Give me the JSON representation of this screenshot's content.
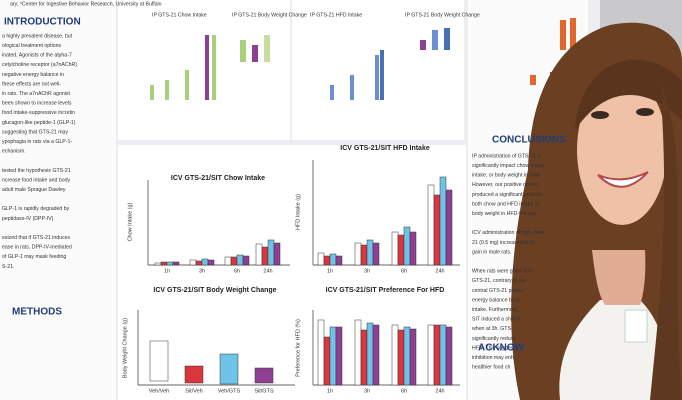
{
  "poster": {
    "header": "ary; ¹Center for Ingestive Behavior Research, University at Buffalo",
    "intro": {
      "title": "INTRODUCTION",
      "lines": [
        "a highly prevalent disease, but",
        "ological treatment options",
        "inated. Agonists of the alpha-7",
        "cetylcholine receptor (a7nAChR)",
        "negative energy balance in",
        "these effects are not well-",
        "in rats. The a7nAChR agonist",
        "been shown to increase levels",
        "food intake-suppressive incretin",
        "glucagon-like peptide-1 (GLP-1)",
        "suggesting that GTS-21 may",
        "ypophagia in rats via a GLP-1-",
        "echanism.",
        "",
        "tested the hypothesis GTS-21",
        "ncrease food intake and body",
        "adult male Sprague Dawley",
        "",
        "GLP-1 is rapidly degraded by",
        "peptidase-IV (DPP-IV).",
        "",
        "esized that if GTS-21 induces",
        "ease in rats, DPP-IV-mediated",
        "of GLP-1 may mask feeding",
        "S-21."
      ]
    },
    "methods_title": "METHODS",
    "top_charts": [
      "IP GTS-21 Chow Intake",
      "IP GTS-21 Body Weight Change",
      "IP GTS-21 HFD Intake",
      "IP GTS-21 Body Weight Change"
    ],
    "charts": [
      {
        "title": "ICV GTS-21/SIT Chow Intake",
        "ylabel": "Chow Intake (g)",
        "xlabels": [
          "1h",
          "3h",
          "6h",
          "24h"
        ]
      },
      {
        "title": "ICV GTS-21/SIT HFD Intake",
        "ylabel": "HFD Intake (g)",
        "xlabels": [
          "1h",
          "3h",
          "6h",
          "24h"
        ]
      },
      {
        "title": "ICV GTS-21/SIT Body Weight Change",
        "ylabel": "Body Weight Change (g)",
        "xlabels": [
          "Veh/Veh",
          "Sit/Veh",
          "Veh/GTS",
          "Sit/GTS"
        ]
      },
      {
        "title": "ICV GTS-21/SIT Preference For HFD",
        "ylabel": "Preference for HFD (%)",
        "xlabels": [
          "1h",
          "3h",
          "6h",
          "24h"
        ]
      }
    ],
    "conclusions": {
      "title": "CONCLUSIONS",
      "lines": [
        "IP administration of GTS-21 d",
        "significantly impact chow intake",
        "intake, or body weight in male",
        "However, our positive contro",
        "produced a significant reductio",
        "both chow and HFD intake as",
        "body weight in HFD-fed rats.",
        "",
        "ICV administration of high-dose",
        "21 (0.5 mg) increased body",
        "gain in male rats.",
        "",
        "When rats were given ICV",
        "GTS-21, contrary to our",
        "central GTS-21 promo",
        "energy balance by in",
        "intake. Furthermore,",
        "SIT induced a shift in",
        "when at 3h. GTS-",
        "significantly reduce",
        "HFD. This suggest",
        "inhibition may enh",
        "healthier food ch"
      ]
    },
    "ack_title": "ACKNOW"
  }
}
